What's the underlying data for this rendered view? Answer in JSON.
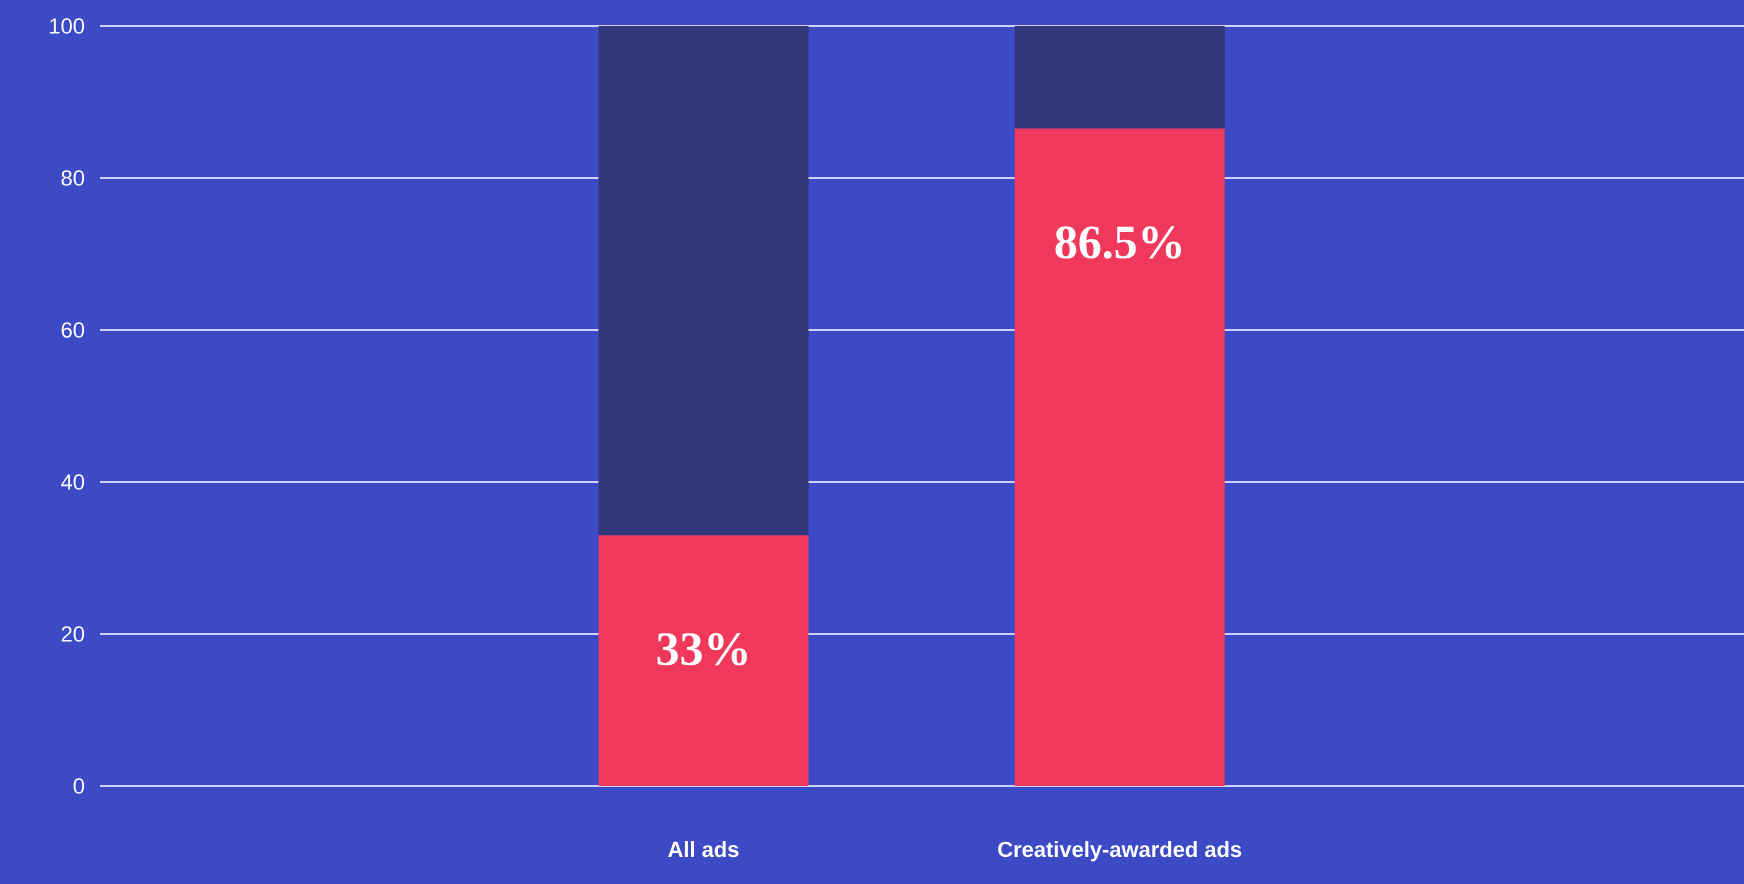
{
  "chart_data": {
    "type": "bar",
    "stacked": true,
    "categories": [
      "All ads",
      "Creatively-awarded ads"
    ],
    "series": [
      {
        "color": "#f0385c",
        "values": [
          33,
          86.5
        ],
        "value_labels": [
          "33%",
          "86.5%"
        ]
      },
      {
        "color": "#313678",
        "values": [
          67,
          13.5
        ]
      }
    ],
    "ylim": [
      0,
      100
    ],
    "yticks": [
      0,
      20,
      40,
      60,
      80,
      100
    ],
    "grid": "y"
  }
}
